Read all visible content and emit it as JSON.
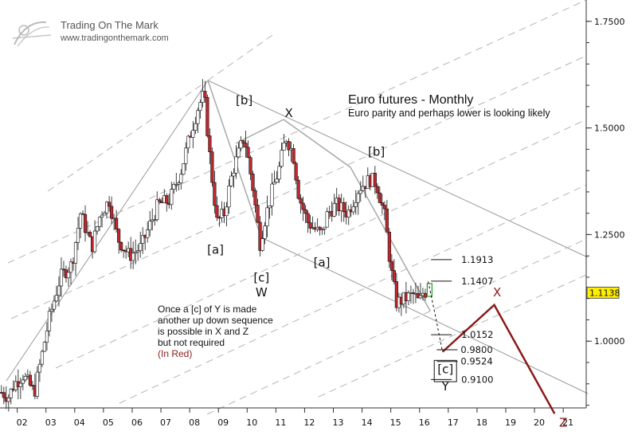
{
  "header": {
    "brand": "Trading On The Mark",
    "url": "www.tradingonthemark.com"
  },
  "chart_data": {
    "type": "candlestick",
    "title": "Euro futures - Monthly",
    "subtitle": "Euro parity and perhaps lower is looking likely",
    "x_tick_labels": [
      "02",
      "03",
      "04",
      "05",
      "06",
      "07",
      "08",
      "09",
      "10",
      "11",
      "12",
      "13",
      "14",
      "15",
      "16",
      "17",
      "18",
      "19",
      "20",
      "21"
    ],
    "y_tick_labels": [
      "1.7500",
      "1.5000",
      "1.2500",
      "1.0000"
    ],
    "y_ticks": [
      1.75,
      1.5,
      1.25,
      1.0
    ],
    "ylim": [
      0.78,
      1.8
    ],
    "xlim": [
      2001.4,
      2021.8
    ],
    "last_price": "1.1138",
    "close_path": [
      [
        2001.45,
        0.88
      ],
      [
        2001.7,
        0.87
      ],
      [
        2001.9,
        0.9
      ],
      [
        2002.2,
        0.92
      ],
      [
        2002.6,
        0.88
      ],
      [
        2003.1,
        1.05
      ],
      [
        2003.5,
        1.15
      ],
      [
        2003.9,
        1.18
      ],
      [
        2004.2,
        1.3
      ],
      [
        2004.6,
        1.22
      ],
      [
        2004.9,
        1.3
      ],
      [
        2005.2,
        1.33
      ],
      [
        2005.5,
        1.24
      ],
      [
        2005.9,
        1.2
      ],
      [
        2006.3,
        1.22
      ],
      [
        2006.6,
        1.27
      ],
      [
        2006.9,
        1.32
      ],
      [
        2007.3,
        1.33
      ],
      [
        2007.7,
        1.4
      ],
      [
        2008.0,
        1.48
      ],
      [
        2008.3,
        1.55
      ],
      [
        2008.5,
        1.58
      ],
      [
        2008.75,
        1.4
      ],
      [
        2008.95,
        1.28
      ],
      [
        2009.2,
        1.3
      ],
      [
        2009.5,
        1.4
      ],
      [
        2009.9,
        1.48
      ],
      [
        2010.2,
        1.36
      ],
      [
        2010.45,
        1.23
      ],
      [
        2010.6,
        1.28
      ],
      [
        2010.9,
        1.36
      ],
      [
        2011.1,
        1.4
      ],
      [
        2011.35,
        1.48
      ],
      [
        2011.6,
        1.44
      ],
      [
        2011.8,
        1.34
      ],
      [
        2012.1,
        1.28
      ],
      [
        2012.4,
        1.26
      ],
      [
        2012.6,
        1.25
      ],
      [
        2012.8,
        1.3
      ],
      [
        2013.1,
        1.32
      ],
      [
        2013.5,
        1.3
      ],
      [
        2013.9,
        1.36
      ],
      [
        2014.3,
        1.38
      ],
      [
        2014.5,
        1.37
      ],
      [
        2014.8,
        1.29
      ],
      [
        2015.0,
        1.17
      ],
      [
        2015.2,
        1.09
      ],
      [
        2015.5,
        1.1
      ],
      [
        2015.8,
        1.11
      ],
      [
        2016.0,
        1.09
      ],
      [
        2016.15,
        1.12
      ],
      [
        2016.25,
        1.11
      ]
    ],
    "wave_labels": [
      {
        "text": "[b]",
        "x": 2009.9,
        "y": 1.555,
        "color": "#111111"
      },
      {
        "text": "X",
        "x": 2011.45,
        "y": 1.525,
        "color": "#111111"
      },
      {
        "text": "[b]",
        "x": 2014.5,
        "y": 1.435,
        "color": "#111111"
      },
      {
        "text": "[a]",
        "x": 2008.9,
        "y": 1.205,
        "color": "#111111"
      },
      {
        "text": "[c]",
        "x": 2010.5,
        "y": 1.14,
        "color": "#111111"
      },
      {
        "text": "W",
        "x": 2010.5,
        "y": 1.105,
        "color": "#111111"
      },
      {
        "text": "[a]",
        "x": 2012.6,
        "y": 1.175,
        "color": "#111111"
      },
      {
        "text": "[c]",
        "x": 2016.9,
        "y": 0.925,
        "color": "#111111"
      },
      {
        "text": "Y",
        "x": 2016.9,
        "y": 0.885,
        "color": "#111111"
      },
      {
        "text": "X",
        "x": 2018.7,
        "y": 1.105,
        "color": "#8b1a1a"
      },
      {
        "text": "Z",
        "x": 2021.0,
        "y": 0.8,
        "color": "#8b1a1a"
      }
    ],
    "levels": [
      {
        "label": "1.1913",
        "value": 1.1913
      },
      {
        "label": "1.1407",
        "value": 1.1407
      },
      {
        "label": "1.0152",
        "value": 1.0152
      },
      {
        "label": "0.9800",
        "value": 0.98
      },
      {
        "label": "0.9524",
        "value": 0.9524
      },
      {
        "label": "0.9100",
        "value": 0.91
      }
    ],
    "projection_red": [
      [
        2016.8,
        0.975
      ],
      [
        2018.6,
        1.085
      ],
      [
        2020.7,
        0.83
      ]
    ],
    "annotation": [
      "Once a [c] of Y is made",
      "another up down sequence",
      "is possible in X and Z",
      "but not required",
      "(In Red)"
    ]
  },
  "colors": {
    "bull_candle": "#ffffff",
    "bear_candle": "#c0282e",
    "projection": "#8b1a1a",
    "channel": "#9a9a9a",
    "last_price_box": "#ffee00"
  }
}
